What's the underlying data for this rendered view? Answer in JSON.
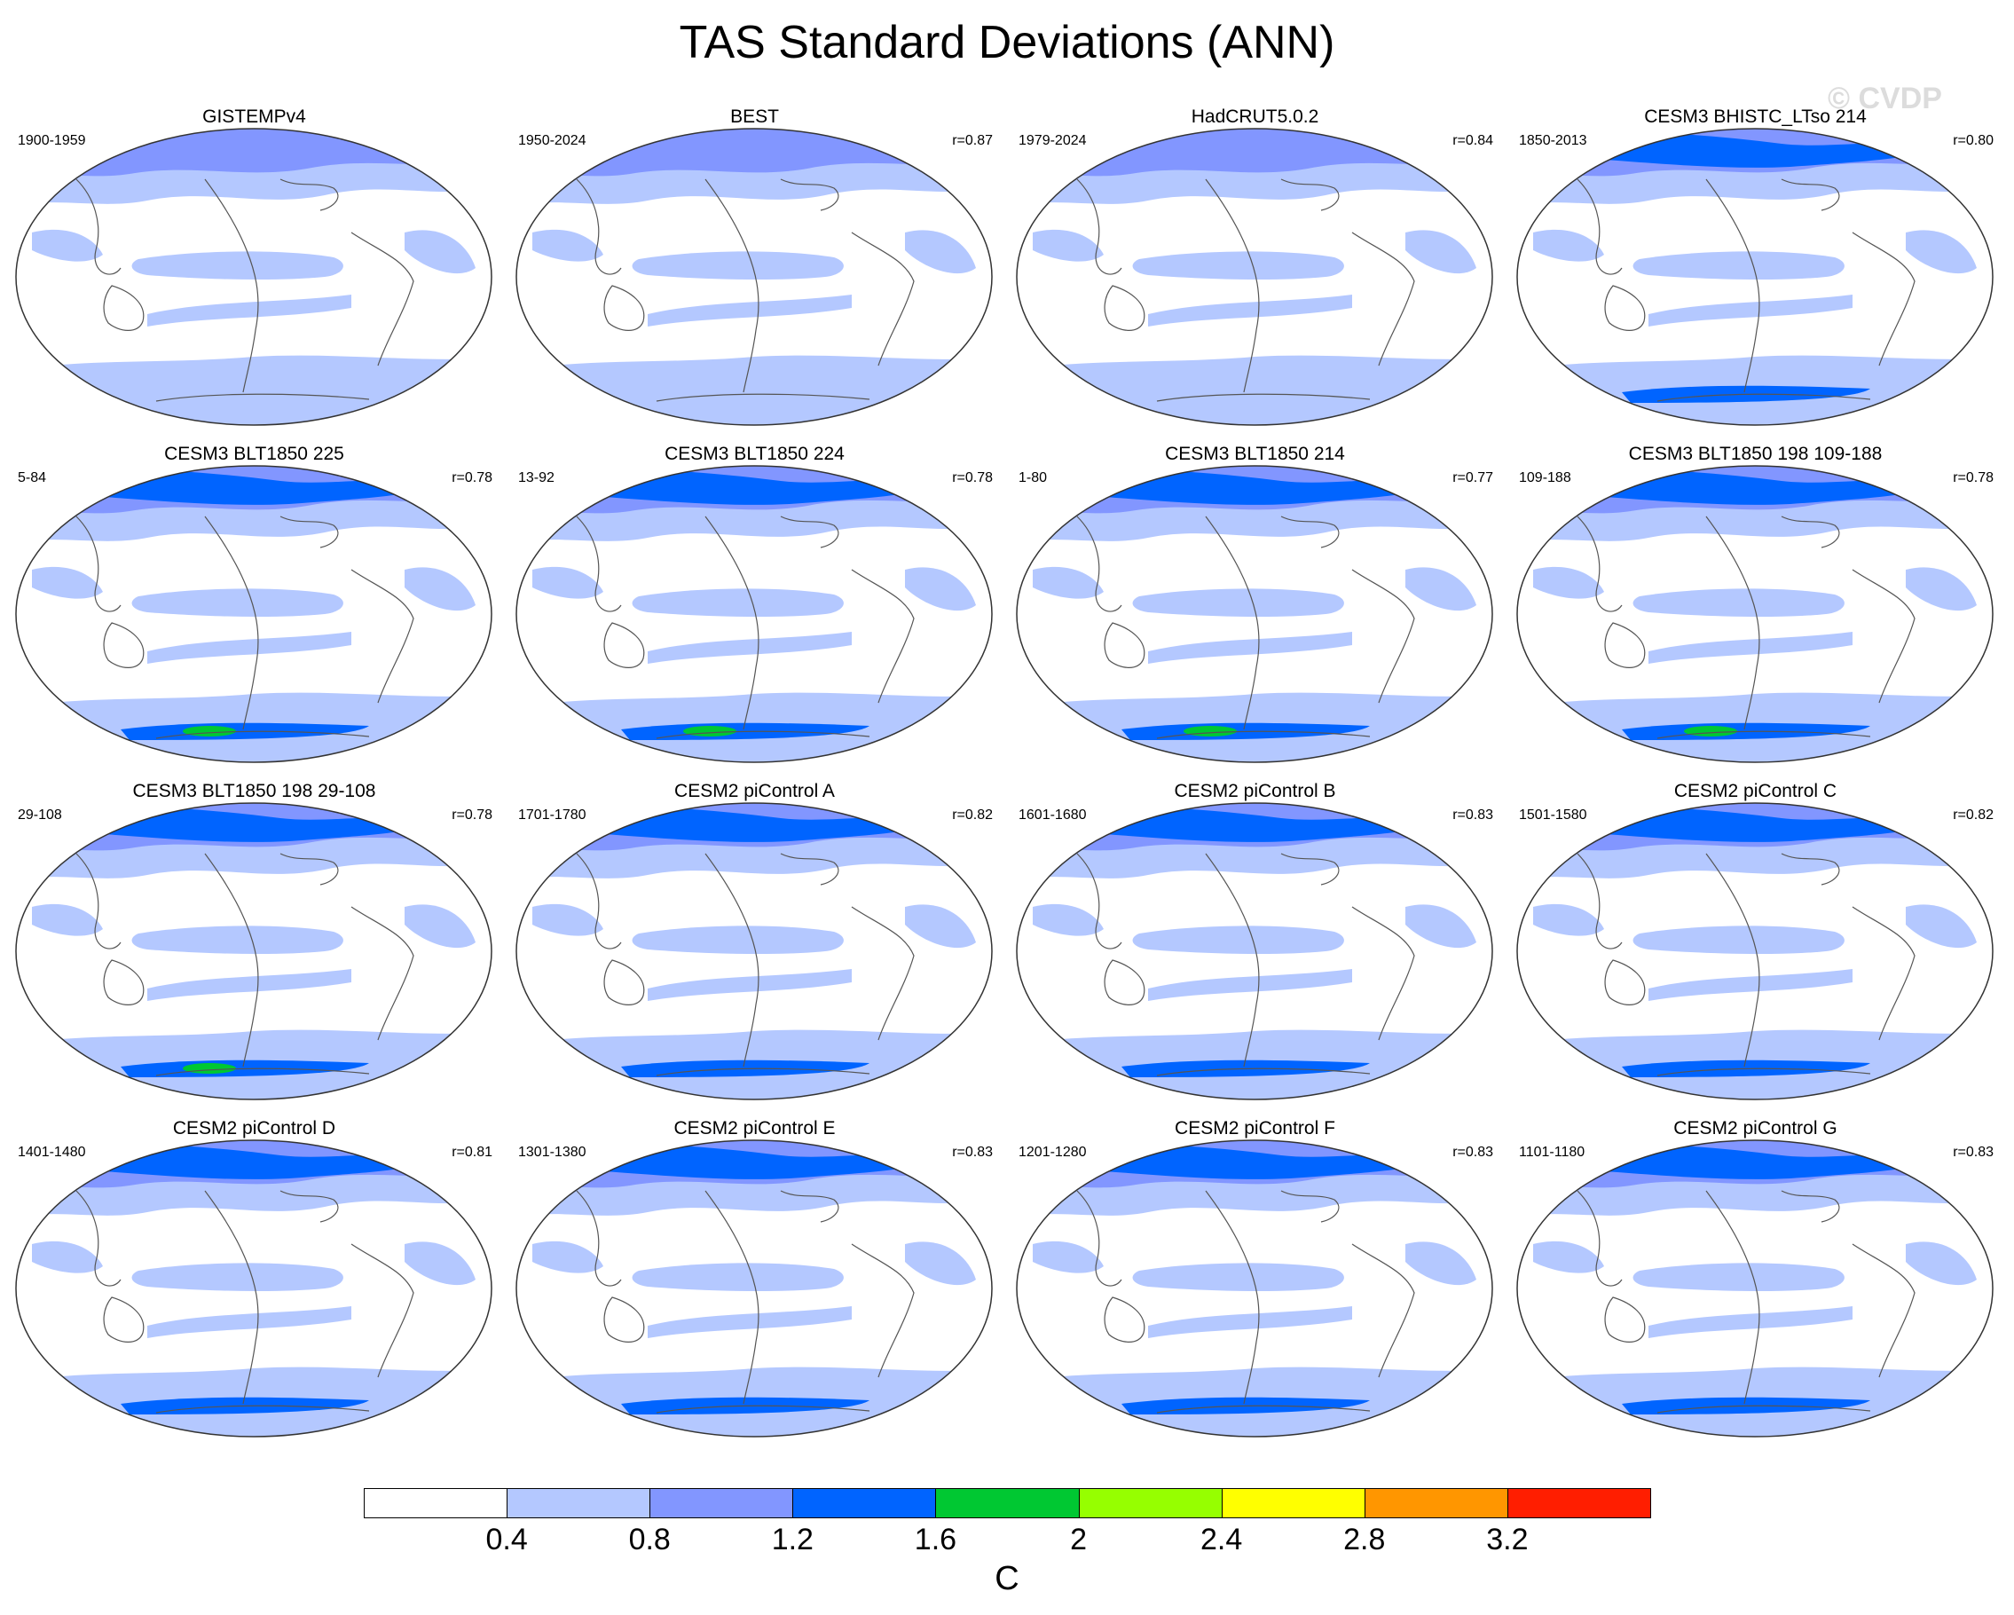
{
  "title": "TAS Standard Deviations (ANN)",
  "watermark": "© CVDP",
  "panels": [
    {
      "title": "GISTEMPv4",
      "years": "1900-1959",
      "r": "",
      "level": 0
    },
    {
      "title": "BEST",
      "years": "1950-2024",
      "r": "r=0.87",
      "level": 0
    },
    {
      "title": "HadCRUT5.0.2",
      "years": "1979-2024",
      "r": "r=0.84",
      "level": 0
    },
    {
      "title": "CESM3 BHISTC_LTso 214",
      "years": "1850-2013",
      "r": "r=0.80",
      "level": 1
    },
    {
      "title": "CESM3 BLT1850 225",
      "years": "5-84",
      "r": "r=0.78",
      "level": 2
    },
    {
      "title": "CESM3 BLT1850 224",
      "years": "13-92",
      "r": "r=0.78",
      "level": 2
    },
    {
      "title": "CESM3 BLT1850 214",
      "years": "1-80",
      "r": "r=0.77",
      "level": 2
    },
    {
      "title": "CESM3 BLT1850 198 109-188",
      "years": "109-188",
      "r": "r=0.78",
      "level": 2
    },
    {
      "title": "CESM3 BLT1850 198 29-108",
      "years": "29-108",
      "r": "r=0.78",
      "level": 2
    },
    {
      "title": "CESM2 piControl A",
      "years": "1701-1780",
      "r": "r=0.82",
      "level": 1
    },
    {
      "title": "CESM2 piControl B",
      "years": "1601-1680",
      "r": "r=0.83",
      "level": 1
    },
    {
      "title": "CESM2 piControl C",
      "years": "1501-1580",
      "r": "r=0.82",
      "level": 1
    },
    {
      "title": "CESM2 piControl D",
      "years": "1401-1480",
      "r": "r=0.81",
      "level": 1
    },
    {
      "title": "CESM2 piControl E",
      "years": "1301-1380",
      "r": "r=0.83",
      "level": 1
    },
    {
      "title": "CESM2 piControl F",
      "years": "1201-1280",
      "r": "r=0.83",
      "level": 1
    },
    {
      "title": "CESM2 piControl G",
      "years": "1101-1180",
      "r": "r=0.83",
      "level": 1
    }
  ],
  "colorbar": {
    "colors": [
      "#ffffff",
      "#b4c8ff",
      "#8296ff",
      "#0064ff",
      "#00c832",
      "#96ff00",
      "#ffff00",
      "#ff9600",
      "#ff1e00"
    ],
    "ticks": [
      "0.4",
      "0.8",
      "1.2",
      "1.6",
      "2",
      "2.4",
      "2.8",
      "3.2"
    ],
    "unit": "C"
  },
  "fill_colors": {
    "light": "#b4c8ff",
    "mid": "#8296ff",
    "strong": "#0064ff",
    "green": "#00c832",
    "lime": "#96ff00",
    "yellow": "#ffff00"
  }
}
